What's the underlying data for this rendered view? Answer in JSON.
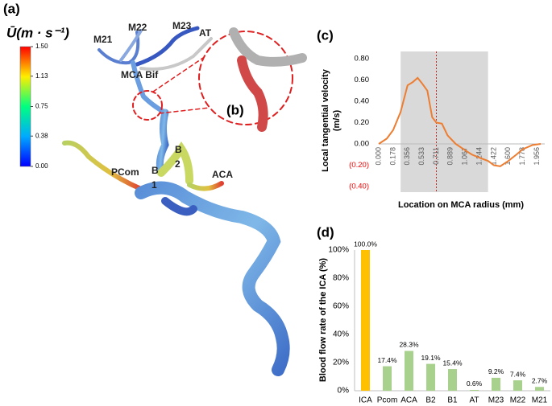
{
  "panel_a": {
    "label": "(a)",
    "inset_label": "(b)",
    "colorbar": {
      "title": "Ū(m · s⁻¹)",
      "lim": [
        0,
        1.5
      ],
      "ticks": [
        {
          "value": 1.5,
          "label": "1.50"
        },
        {
          "value": 1.13,
          "label": "1.13"
        },
        {
          "value": 0.75,
          "label": "0.75"
        },
        {
          "value": 0.38,
          "label": "0.38"
        },
        {
          "value": 0,
          "label": "0.00"
        }
      ]
    },
    "vessel_labels": [
      "M21",
      "M22",
      "M23",
      "AT",
      "MCA Bif",
      "PCom",
      "B",
      "1",
      "B",
      "2",
      "ACA"
    ]
  },
  "chart_data": [
    {
      "type": "line",
      "panel_label": "(c)",
      "x_label": "Location on MCA radius (mm)",
      "y_label": [
        "Local tangential velocity",
        "(m/s)"
      ],
      "x": [
        0,
        0.1,
        0.178,
        0.27,
        0.356,
        0.42,
        0.48,
        0.533,
        0.6,
        0.66,
        0.711,
        0.78,
        0.85,
        0.95,
        1.067,
        1.15,
        1.244,
        1.35,
        1.422,
        1.5,
        1.6,
        1.7,
        1.778,
        1.9,
        2.0
      ],
      "values": [
        0,
        0.05,
        0.13,
        0.3,
        0.55,
        0.58,
        0.62,
        0.57,
        0.5,
        0.25,
        0.2,
        0.19,
        0.08,
        0,
        -0.06,
        -0.1,
        -0.13,
        -0.16,
        -0.2,
        -0.21,
        -0.16,
        -0.1,
        -0.05,
        -0.01,
        0
      ],
      "color": "#ed7d31",
      "xlim": [
        0,
        2.0
      ],
      "xticks": [
        {
          "value": 0,
          "label": "0.000"
        },
        {
          "value": 0.178,
          "label": "0.178"
        },
        {
          "value": 0.356,
          "label": "0.356"
        },
        {
          "value": 0.533,
          "label": "0.533"
        },
        {
          "value": 0.711,
          "label": "0.711"
        },
        {
          "value": 0.889,
          "label": "0.889"
        },
        {
          "value": 1.067,
          "label": "1.067"
        },
        {
          "value": 1.244,
          "label": "1.244"
        },
        {
          "value": 1.422,
          "label": "1.422"
        },
        {
          "value": 1.6,
          "label": "1.600"
        },
        {
          "value": 1.778,
          "label": "1.778"
        },
        {
          "value": 1.956,
          "label": "1.956"
        }
      ],
      "ylim": [
        -0.4,
        0.8
      ],
      "yticks": [
        {
          "value": 0.8,
          "label": "0.80"
        },
        {
          "value": 0.6,
          "label": "0.60"
        },
        {
          "value": 0.4,
          "label": "0.40"
        },
        {
          "value": 0.2,
          "label": "0.20"
        },
        {
          "value": 0,
          "label": "0.00"
        },
        {
          "value": -0.2,
          "label": "(0.20)"
        },
        {
          "value": -0.4,
          "label": "(0.40)"
        }
      ],
      "negative_label_color": "#ff0000",
      "shaded_range": [
        0.27,
        1.35
      ],
      "marker_x": 0.711
    },
    {
      "type": "bar",
      "panel_label": "(d)",
      "y_label": "Blood flow rate of the ICA (%)",
      "categories": [
        "ICA",
        "Pcom",
        "ACA",
        "B2",
        "B1",
        "AT",
        "M23",
        "M22",
        "M21"
      ],
      "values": [
        100,
        17.4,
        28.3,
        19.1,
        15.4,
        0.6,
        9.2,
        7.4,
        2.7
      ],
      "value_labels": [
        "100.0%",
        "17.4%",
        "28.3%",
        "19.1%",
        "15.4%",
        "0.6%",
        "9.2%",
        "7.4%",
        "2.7%"
      ],
      "colors": [
        "#ffc000",
        "#a9d18e",
        "#a9d18e",
        "#a9d18e",
        "#a9d18e",
        "#a9d18e",
        "#a9d18e",
        "#a9d18e",
        "#a9d18e"
      ],
      "ylim": [
        0,
        100
      ],
      "yticks": [
        {
          "value": 0,
          "label": "0%"
        },
        {
          "value": 20,
          "label": "20%"
        },
        {
          "value": 40,
          "label": "40%"
        },
        {
          "value": 60,
          "label": "60%"
        },
        {
          "value": 80,
          "label": "80%"
        },
        {
          "value": 100,
          "label": "100%"
        }
      ]
    }
  ]
}
